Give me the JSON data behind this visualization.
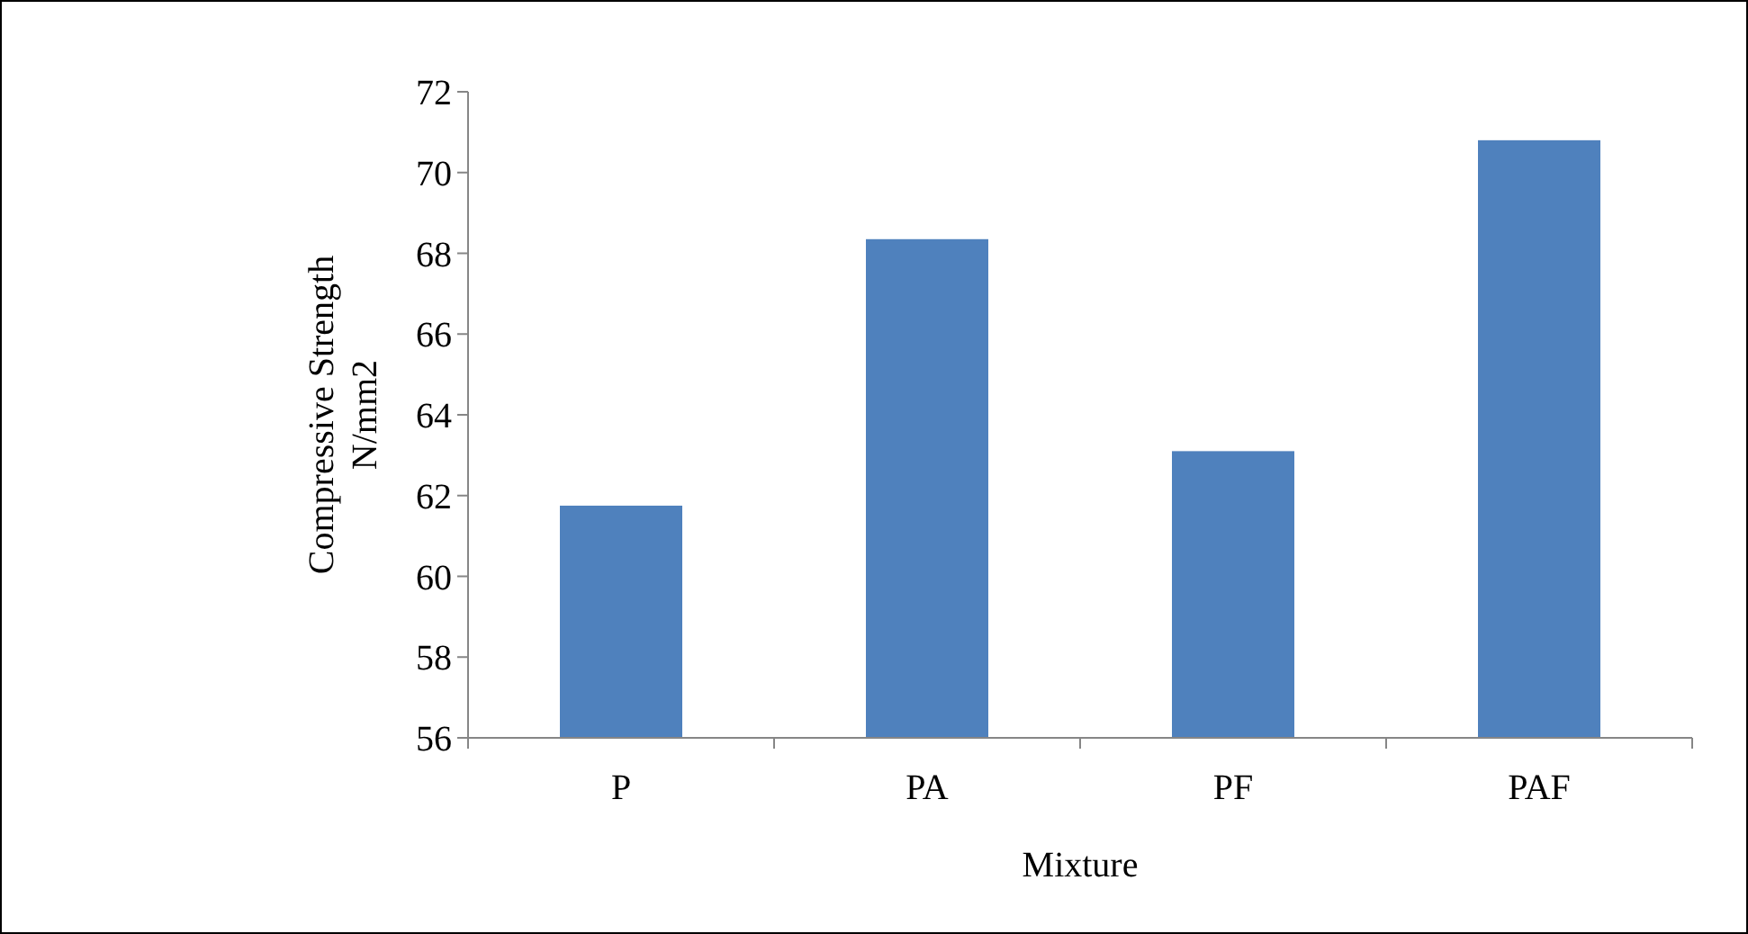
{
  "chart_data": {
    "type": "bar",
    "xlabel": "Mixture",
    "ylabel": "Compressive Strength N/mm2",
    "categories": [
      "P",
      "PA",
      "PF",
      "PAF"
    ],
    "values": [
      61.75,
      68.35,
      63.1,
      70.8
    ],
    "color": "#4f81bd",
    "ylim": [
      56,
      72
    ],
    "yticks": [
      56,
      58,
      60,
      62,
      64,
      66,
      68,
      70,
      72
    ],
    "grid": false
  }
}
